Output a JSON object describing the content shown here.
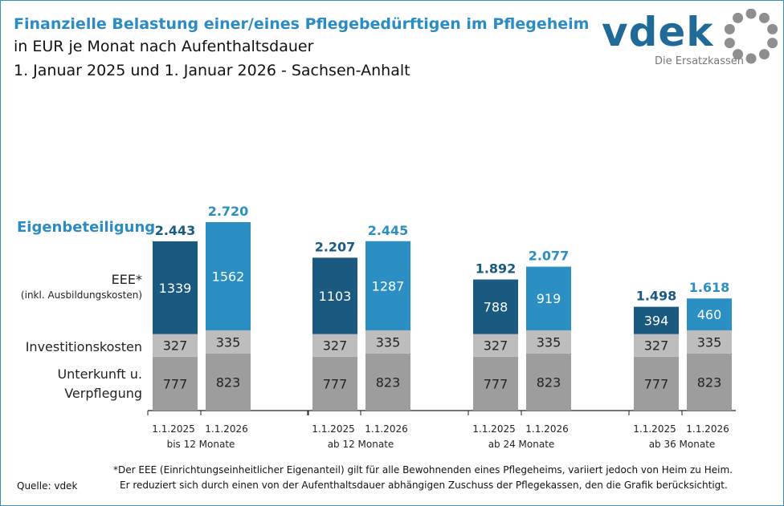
{
  "header": {
    "title": "Finanzielle Belastung einer/eines Pflegebedürftigen im Pflegeheim",
    "subtitle1": "in EUR je Monat nach Aufenthaltsdauer",
    "subtitle2": "1. Januar 2025 und 1. Januar 2026 - Sachsen-Anhalt"
  },
  "logo": {
    "text": "vdek",
    "tagline": "Die Ersatzkassen"
  },
  "legend_labels": {
    "total": "Eigenbeteiligung",
    "eee": "EEE*",
    "eee_note": "(inkl. Ausbildungskosten)",
    "invest": "Investitionskosten",
    "unterkunft1": "Unterkunft u.",
    "unterkunft2": "Verpflegung"
  },
  "chart_data": {
    "type": "bar",
    "stacked": true,
    "groups": [
      "bis 12 Monate",
      "ab 12 Monate",
      "ab 24 Monate",
      "ab 36 Monate"
    ],
    "dates": [
      "1.1.2025",
      "1.1.2026"
    ],
    "series": [
      {
        "name": "Unterkunft u. Verpflegung",
        "values": [
          [
            777,
            823
          ],
          [
            777,
            823
          ],
          [
            777,
            823
          ],
          [
            777,
            823
          ]
        ],
        "colors": [
          "#9d9d9d",
          "#9d9d9d"
        ]
      },
      {
        "name": "Investitionskosten",
        "values": [
          [
            327,
            335
          ],
          [
            327,
            335
          ],
          [
            327,
            335
          ],
          [
            327,
            335
          ]
        ],
        "colors": [
          "#bdbdbd",
          "#bdbdbd"
        ]
      },
      {
        "name": "EEE*",
        "values": [
          [
            1339,
            1562
          ],
          [
            1103,
            1287
          ],
          [
            788,
            919
          ],
          [
            394,
            460
          ]
        ],
        "colors": [
          "#1b5a80",
          "#2b8fc3"
        ]
      }
    ],
    "totals": [
      [
        "2.443",
        "2.720"
      ],
      [
        "2.207",
        "2.445"
      ],
      [
        "1.892",
        "2.077"
      ],
      [
        "1.498",
        "1.618"
      ]
    ],
    "total_colors": [
      "#1b5a80",
      "#2b8fc3"
    ]
  },
  "footer": {
    "note1": "*Der EEE (Einrichtungseinheitlicher Eigenanteil) gilt für alle Bewohnenden eines Pflegeheims, variiert jedoch von Heim zu Heim.",
    "note2": "Er reduziert sich durch einen von der Aufenthaltsdauer abhängigen Zuschuss der Pflegekassen, den die Grafik berücksichtigt.",
    "source": "Quelle: vdek"
  }
}
